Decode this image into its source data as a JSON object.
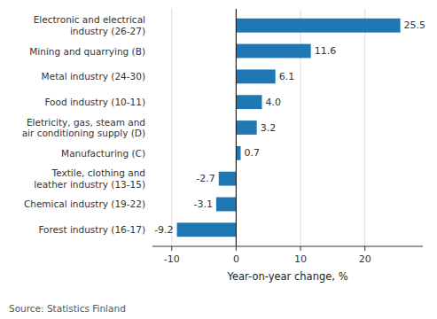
{
  "chart_data": {
    "type": "bar",
    "orientation": "horizontal",
    "categories": [
      "Forest industry (16-17)",
      "Chemical industry (19-22)",
      "Textile, clothing and\nleather industry (13-15)",
      "Manufacturing (C)",
      "Eletricity, gas, steam and\nair conditioning supply (D)",
      "Food industry (10-11)",
      "Metal industry (24-30)",
      "Mining and quarrying (B)",
      "Electronic and electrical\nindustry (26-27)"
    ],
    "values": [
      -9.2,
      -3.1,
      -2.7,
      0.7,
      3.2,
      4.0,
      6.1,
      11.6,
      25.5
    ],
    "value_labels": [
      "-9.2",
      "-3.1",
      "-2.7",
      "0.7",
      "3.2",
      "4.0",
      "6.1",
      "11.6",
      "25.5"
    ],
    "color": "#1f77b4",
    "xlabel": "Year-on-year change, %",
    "xlim": [
      -13,
      29
    ],
    "xticks": [
      -10,
      0,
      10,
      20
    ],
    "grid": true,
    "data_labels": true,
    "annotations": [
      "Source: Statistics Finland"
    ]
  }
}
